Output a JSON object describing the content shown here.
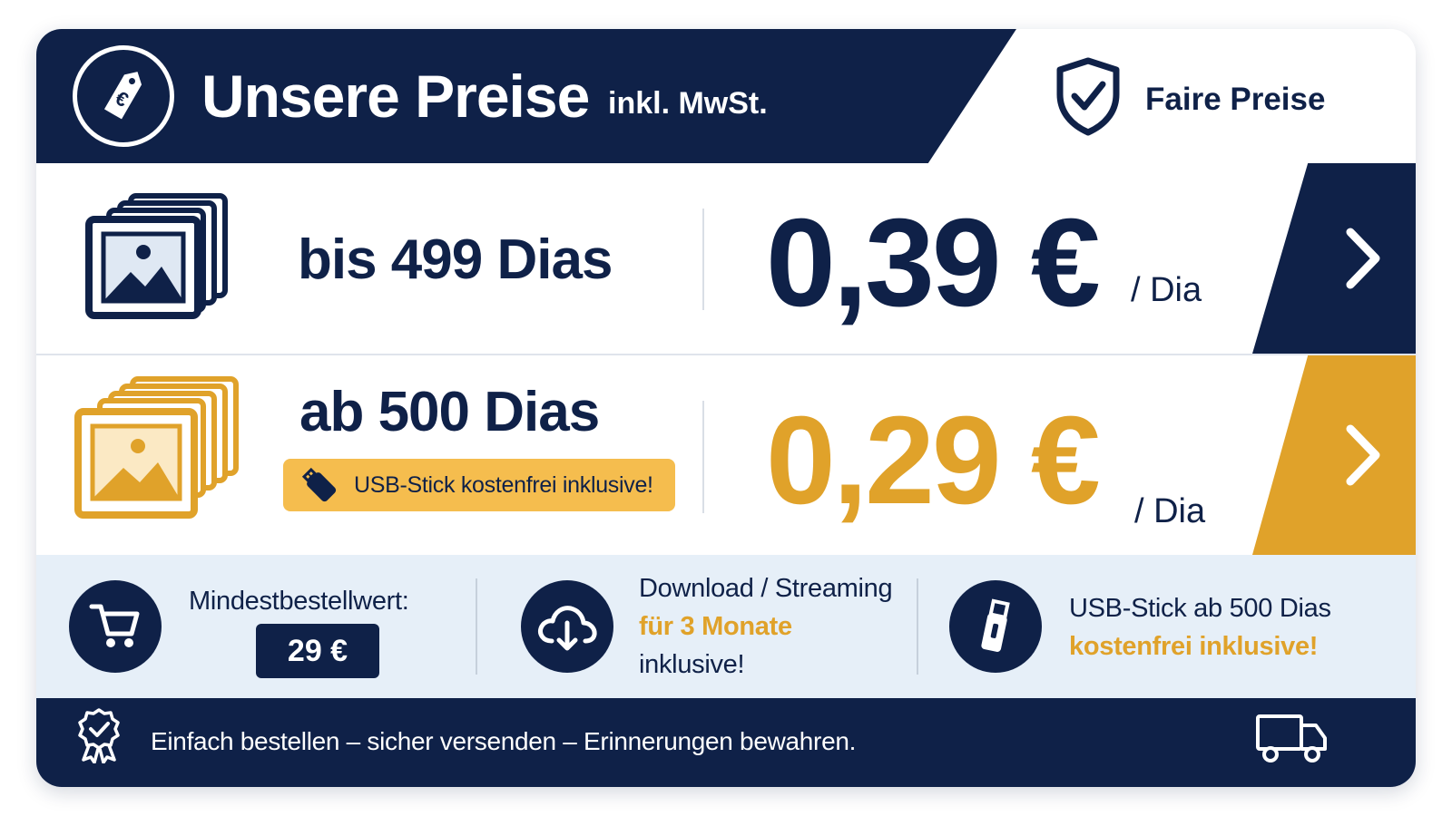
{
  "header": {
    "title": "Unsere Preise",
    "subtitle": "inkl. MwSt.",
    "badge": "Faire Preise",
    "logo_icon": "euro-price-tag-icon",
    "badge_icon": "shield-check-icon"
  },
  "tiers": [
    {
      "label": "bis 499 Dias",
      "price": "0,39 €",
      "unit": "/ Dia",
      "color": "#0f2148",
      "icon": "photo-stack-icon"
    },
    {
      "label": "ab 500 Dias",
      "price": "0,29 €",
      "unit": "/ Dia",
      "color": "#e0a22a",
      "icon": "photo-stack-icon",
      "note": "USB-Stick kostenfrei inklusive!",
      "note_icon": "usb-stick-icon"
    }
  ],
  "info": {
    "min_order": {
      "label": "Mindestbestellwert:",
      "value": "29 €",
      "icon": "cart-icon"
    },
    "download": {
      "line1": "Download / Streaming",
      "line2": "für 3 Monate",
      "line3": "inklusive!",
      "icon": "cloud-download-icon"
    },
    "usb": {
      "line1": "USB-Stick ab 500 Dias",
      "line2": "kostenfrei inklusive!",
      "icon": "usb-stick-icon"
    }
  },
  "footer": {
    "text": "Einfach bestellen – sicher versenden – Erinnerungen bewahren.",
    "left_icon": "award-badge-icon",
    "right_icon": "truck-icon"
  },
  "colors": {
    "navy": "#0f2148",
    "gold": "#e0a22a",
    "gold_light": "#f5bd4e",
    "light_blue": "#e6eff8"
  }
}
